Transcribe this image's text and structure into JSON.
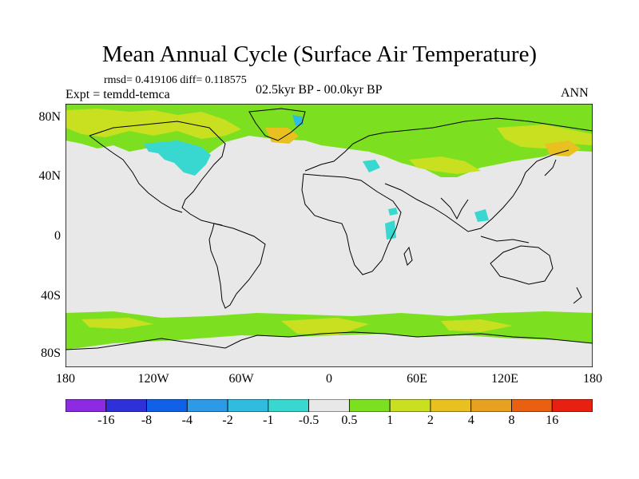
{
  "header": {
    "title": "Mean Annual Cycle (Surface Air Temperature)",
    "stats": "rmsd= 0.419106 diff= 0.118575",
    "experiment": "Expt = temdd-temca",
    "period": "02.5kyr BP - 00.0kyr BP",
    "season": "ANN"
  },
  "map": {
    "lat_labels": [
      "80N",
      "40N",
      "0",
      "40S",
      "80S"
    ],
    "lon_labels": [
      "180",
      "120W",
      "60W",
      "0",
      "60E",
      "120E",
      "180"
    ]
  },
  "colorbar": {
    "labels": [
      "-16",
      "-8",
      "-4",
      "-2",
      "-1",
      "-0.5",
      "0.5",
      "1",
      "2",
      "4",
      "8",
      "16"
    ],
    "colors": [
      "#8c2be2",
      "#3030d8",
      "#1060e8",
      "#2c9ae6",
      "#30bcde",
      "#38d8d0",
      "#e8e8e8",
      "#7ce020",
      "#c8e020",
      "#e8c020",
      "#e8a020",
      "#e86010",
      "#e82010"
    ]
  }
}
